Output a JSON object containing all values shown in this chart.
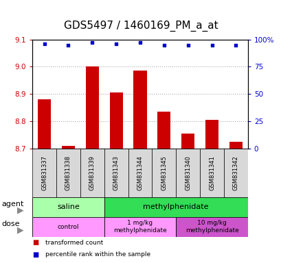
{
  "title": "GDS5497 / 1460169_PM_a_at",
  "samples": [
    "GSM831337",
    "GSM831338",
    "GSM831339",
    "GSM831343",
    "GSM831344",
    "GSM831345",
    "GSM831340",
    "GSM831341",
    "GSM831342"
  ],
  "bar_values": [
    8.88,
    8.71,
    9.0,
    8.905,
    8.985,
    8.835,
    8.755,
    8.805,
    8.725
  ],
  "percentile_values": [
    96,
    95,
    97,
    96,
    97,
    95,
    95,
    95,
    95
  ],
  "bar_color": "#cc0000",
  "dot_color": "#0000cc",
  "ylim_left": [
    8.7,
    9.1
  ],
  "ylim_right": [
    0,
    100
  ],
  "yticks_left": [
    8.7,
    8.8,
    8.9,
    9.0,
    9.1
  ],
  "yticks_right": [
    0,
    25,
    50,
    75,
    100
  ],
  "ytick_labels_right": [
    "0",
    "25",
    "50",
    "75",
    "100%"
  ],
  "agent_groups": [
    {
      "label": "saline",
      "start": 0,
      "end": 3,
      "color": "#aaffaa"
    },
    {
      "label": "methylphenidate",
      "start": 3,
      "end": 9,
      "color": "#33dd55"
    }
  ],
  "dose_groups": [
    {
      "label": "control",
      "start": 0,
      "end": 3,
      "color": "#ff99ff"
    },
    {
      "label": "1 mg/kg\nmethylphenidate",
      "start": 3,
      "end": 6,
      "color": "#ff99ff"
    },
    {
      "label": "10 mg/kg\nmethylphenidate",
      "start": 6,
      "end": 9,
      "color": "#cc55cc"
    }
  ],
  "group_boundaries": [
    3,
    6
  ],
  "legend_items": [
    {
      "color": "#cc0000",
      "label": "transformed count"
    },
    {
      "color": "#0000cc",
      "label": "percentile rank within the sample"
    }
  ],
  "bar_width": 0.55,
  "background_color": "#ffffff",
  "grid_color": "#aaaaaa",
  "tick_label_color_left": "#cc0000",
  "tick_label_color_right": "#0000cc",
  "title_fontsize": 11,
  "tick_fontsize": 7.5,
  "label_fontsize": 8,
  "xtick_color": "#cccccc"
}
